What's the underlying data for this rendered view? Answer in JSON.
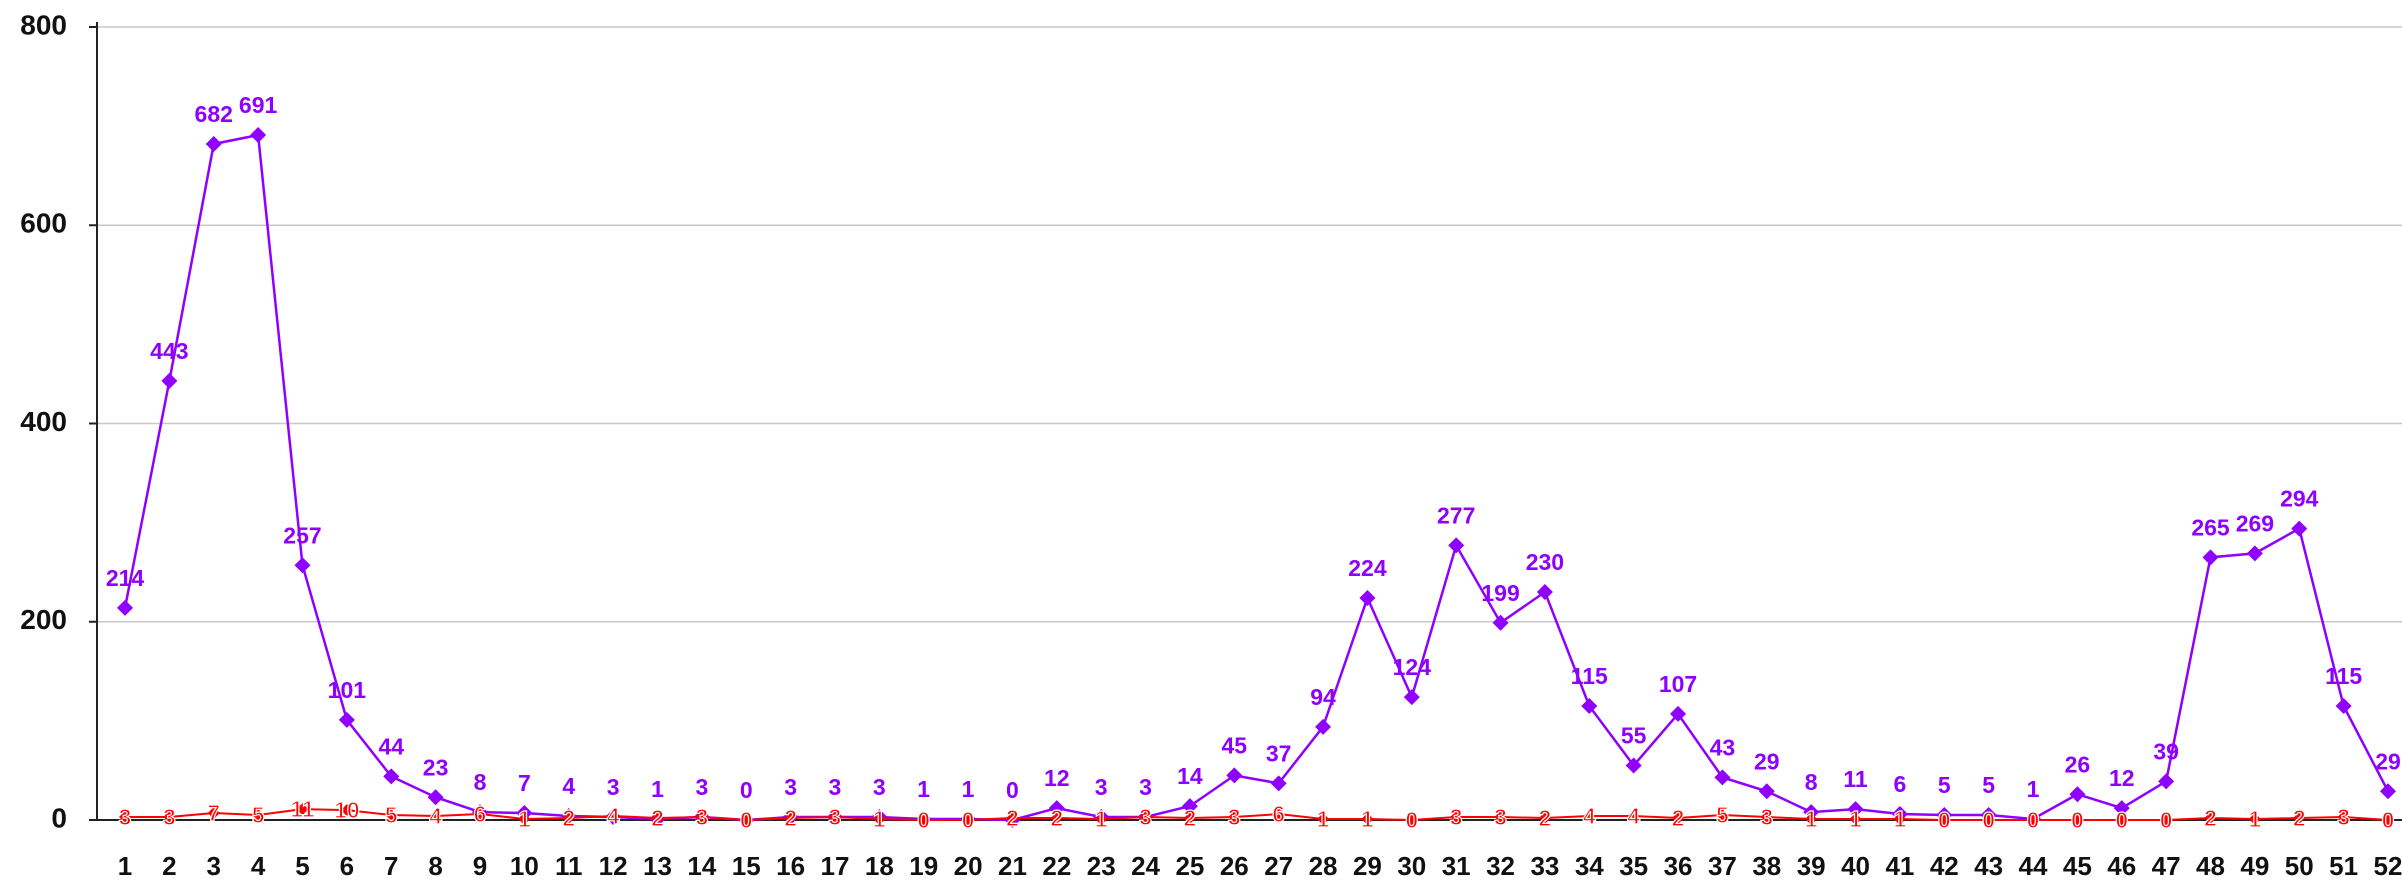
{
  "chart_data": {
    "type": "line",
    "categories": [
      "1",
      "2",
      "3",
      "4",
      "5",
      "6",
      "7",
      "8",
      "9",
      "10",
      "11",
      "12",
      "13",
      "14",
      "15",
      "16",
      "17",
      "18",
      "19",
      "20",
      "21",
      "22",
      "23",
      "24",
      "25",
      "26",
      "27",
      "28",
      "29",
      "30",
      "31",
      "32",
      "33",
      "34",
      "35",
      "36",
      "37",
      "38",
      "39",
      "40",
      "41",
      "42",
      "43",
      "44",
      "45",
      "46",
      "47",
      "48",
      "49",
      "50",
      "51",
      "52"
    ],
    "series": [
      {
        "color": "#8f00ff",
        "values": [
          214,
          443,
          682,
          691,
          257,
          101,
          44,
          23,
          8,
          7,
          4,
          3,
          1,
          3,
          0,
          3,
          3,
          3,
          1,
          1,
          0,
          12,
          3,
          3,
          14,
          45,
          37,
          94,
          224,
          124,
          277,
          199,
          230,
          115,
          55,
          107,
          43,
          29,
          8,
          11,
          6,
          5,
          5,
          1,
          26,
          12,
          39,
          265,
          269,
          294,
          115,
          29
        ]
      },
      {
        "color": "#ff0000",
        "values": [
          3,
          3,
          7,
          5,
          11,
          10,
          5,
          4,
          6,
          1,
          2,
          4,
          2,
          3,
          0,
          2,
          3,
          1,
          0,
          0,
          2,
          2,
          1,
          3,
          2,
          3,
          6,
          1,
          1,
          0,
          3,
          3,
          2,
          4,
          4,
          2,
          5,
          3,
          1,
          1,
          1,
          0,
          0,
          0,
          0,
          0,
          0,
          2,
          1,
          2,
          3,
          0
        ]
      }
    ],
    "ylim": [
      0,
      800
    ],
    "yticks": [
      0,
      200,
      400,
      600,
      800
    ],
    "grid": true
  }
}
